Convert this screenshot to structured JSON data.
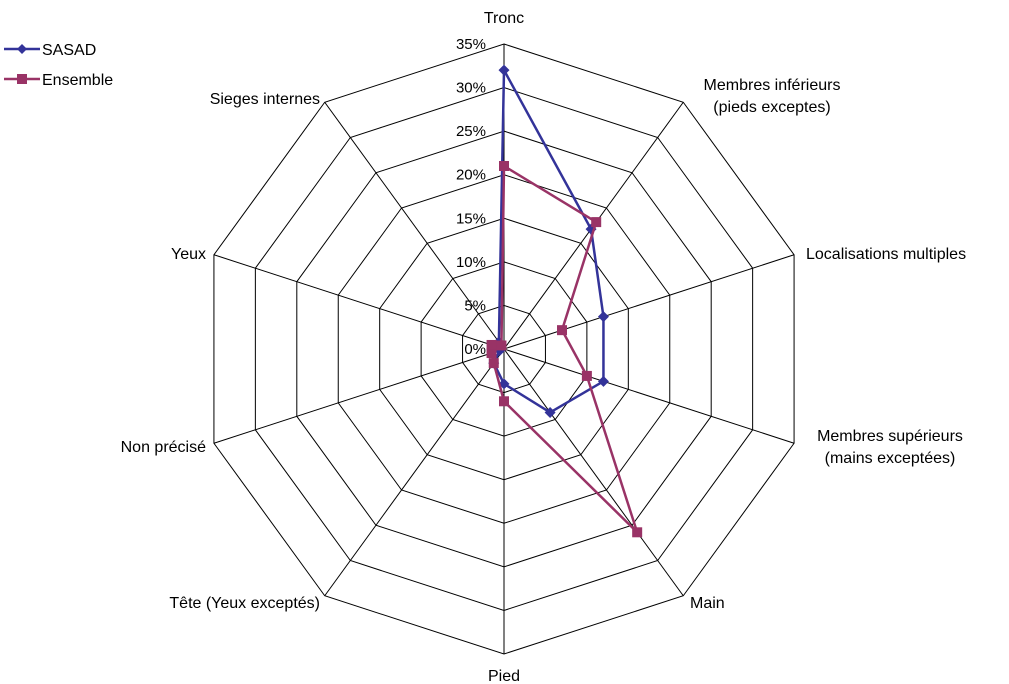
{
  "chart_data": {
    "type": "radar",
    "categories": [
      "Tronc",
      "Membres inférieurs\n(pieds exceptes)",
      "Localisations multiples",
      "Membres supérieurs\n(mains exceptées)",
      "Main",
      "Pied",
      "Tête (Yeux exceptés)",
      "Non précisé",
      "Yeux",
      "Sieges internes"
    ],
    "series": [
      {
        "name": "SASAD",
        "color": "#333399",
        "marker": "diamond",
        "values": [
          32,
          17,
          12,
          12,
          9,
          4,
          2,
          0.5,
          0.5,
          1
        ]
      },
      {
        "name": "Ensemble",
        "color": "#993366",
        "marker": "square",
        "values": [
          21,
          18,
          7,
          10,
          26,
          6,
          2,
          1.5,
          1.5,
          0.5
        ]
      }
    ],
    "rlim": [
      0,
      35
    ],
    "ticks": [
      "0%",
      "5%",
      "10%",
      "15%",
      "20%",
      "25%",
      "30%",
      "35%"
    ],
    "tick_values": [
      0,
      5,
      10,
      15,
      20,
      25,
      30,
      35
    ],
    "grid": true,
    "legend": "top-left"
  }
}
